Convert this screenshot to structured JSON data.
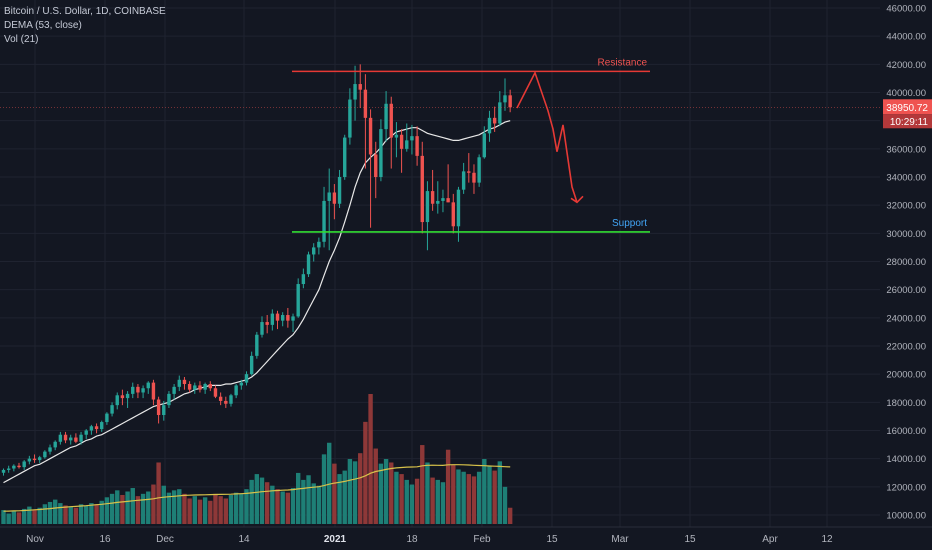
{
  "chart_data": {
    "type": "candlestick",
    "header": {
      "title": "Bitcoin / U.S. Dollar, 1D, COINBASE",
      "indicator_1": "DEMA (53, close)",
      "indicator_2": "Vol (21)"
    },
    "x_ticks": [
      "Nov",
      "16",
      "Dec",
      "14",
      "2021",
      "18",
      "Feb",
      "15",
      "Mar",
      "15",
      "Apr",
      "12"
    ],
    "y_ticks": [
      "46000.00",
      "44000.00",
      "42000.00",
      "40000.00",
      "38000.00",
      "36000.00",
      "34000.00",
      "32000.00",
      "30000.00",
      "28000.00",
      "26000.00",
      "24000.00",
      "22000.00",
      "20000.00",
      "18000.00",
      "16000.00",
      "14000.00",
      "12000.00",
      "10000.00"
    ],
    "y_range": [
      10000,
      46000
    ],
    "last_price": "38950.72",
    "countdown": "10:29:11",
    "annotations": {
      "resistance": {
        "label": "Resistance",
        "price": 41500
      },
      "support": {
        "label": "Support",
        "price": 30100
      },
      "projection_path_prices": [
        38900,
        41400,
        38700,
        37400,
        35800,
        37700,
        33300,
        32200
      ]
    },
    "colors": {
      "background": "#131722",
      "grid": "#1f2330",
      "up": "#26a69a",
      "down": "#ef5350",
      "up_volume": "#1e7f76",
      "down_volume": "#8e3838",
      "dema_line": "#e8e8e8",
      "volume_ma": "#d8c24a",
      "resistance_line": "#e53935",
      "support_line": "#33dd33",
      "resistance_text": "#ef5350",
      "support_text": "#42a5f5",
      "axis_text": "#b2b5be"
    },
    "candles": [
      {
        "o": 13000,
        "h": 13300,
        "l": 12800,
        "c": 13200
      },
      {
        "o": 13200,
        "h": 13500,
        "l": 13000,
        "c": 13300
      },
      {
        "o": 13300,
        "h": 13600,
        "l": 13100,
        "c": 13500
      },
      {
        "o": 13500,
        "h": 13700,
        "l": 13300,
        "c": 13400
      },
      {
        "o": 13400,
        "h": 13900,
        "l": 13200,
        "c": 13800
      },
      {
        "o": 13800,
        "h": 14200,
        "l": 13600,
        "c": 14000
      },
      {
        "o": 14000,
        "h": 14300,
        "l": 13700,
        "c": 13900
      },
      {
        "o": 13900,
        "h": 14200,
        "l": 13700,
        "c": 14100
      },
      {
        "o": 14100,
        "h": 14600,
        "l": 14000,
        "c": 14500
      },
      {
        "o": 14500,
        "h": 15000,
        "l": 14300,
        "c": 14800
      },
      {
        "o": 14800,
        "h": 15300,
        "l": 14600,
        "c": 15200
      },
      {
        "o": 15200,
        "h": 15900,
        "l": 15000,
        "c": 15700
      },
      {
        "o": 15700,
        "h": 15900,
        "l": 15100,
        "c": 15300
      },
      {
        "o": 15300,
        "h": 15700,
        "l": 15000,
        "c": 15500
      },
      {
        "o": 15500,
        "h": 15800,
        "l": 15100,
        "c": 15200
      },
      {
        "o": 15200,
        "h": 15900,
        "l": 15000,
        "c": 15700
      },
      {
        "o": 15700,
        "h": 16100,
        "l": 15400,
        "c": 16000
      },
      {
        "o": 16000,
        "h": 16400,
        "l": 15700,
        "c": 16300
      },
      {
        "o": 16300,
        "h": 16500,
        "l": 15800,
        "c": 16100
      },
      {
        "o": 16100,
        "h": 16700,
        "l": 15900,
        "c": 16600
      },
      {
        "o": 16600,
        "h": 17300,
        "l": 16400,
        "c": 17200
      },
      {
        "o": 17200,
        "h": 18000,
        "l": 17000,
        "c": 17800
      },
      {
        "o": 17800,
        "h": 18700,
        "l": 17500,
        "c": 18500
      },
      {
        "o": 18500,
        "h": 18900,
        "l": 17800,
        "c": 18300
      },
      {
        "o": 18300,
        "h": 18800,
        "l": 17600,
        "c": 18600
      },
      {
        "o": 18600,
        "h": 19400,
        "l": 18300,
        "c": 19100
      },
      {
        "o": 19100,
        "h": 19300,
        "l": 18300,
        "c": 18700
      },
      {
        "o": 18700,
        "h": 19200,
        "l": 18300,
        "c": 19000
      },
      {
        "o": 19000,
        "h": 19500,
        "l": 18600,
        "c": 19400
      },
      {
        "o": 19400,
        "h": 19600,
        "l": 17800,
        "c": 18200
      },
      {
        "o": 18200,
        "h": 18400,
        "l": 16500,
        "c": 17100
      },
      {
        "o": 17100,
        "h": 18100,
        "l": 16700,
        "c": 17800
      },
      {
        "o": 17800,
        "h": 18800,
        "l": 17600,
        "c": 18600
      },
      {
        "o": 18600,
        "h": 19300,
        "l": 18200,
        "c": 19100
      },
      {
        "o": 19100,
        "h": 19900,
        "l": 18800,
        "c": 19600
      },
      {
        "o": 19600,
        "h": 19800,
        "l": 18900,
        "c": 19300
      },
      {
        "o": 19300,
        "h": 19500,
        "l": 18700,
        "c": 18900
      },
      {
        "o": 18900,
        "h": 19400,
        "l": 18600,
        "c": 19200
      },
      {
        "o": 19200,
        "h": 19500,
        "l": 18700,
        "c": 18900
      },
      {
        "o": 18900,
        "h": 19400,
        "l": 18600,
        "c": 19300
      },
      {
        "o": 19300,
        "h": 19500,
        "l": 18800,
        "c": 19000
      },
      {
        "o": 19000,
        "h": 19200,
        "l": 18300,
        "c": 18400
      },
      {
        "o": 18400,
        "h": 18700,
        "l": 17800,
        "c": 18100
      },
      {
        "o": 18100,
        "h": 18400,
        "l": 17600,
        "c": 17900
      },
      {
        "o": 17900,
        "h": 18600,
        "l": 17700,
        "c": 18500
      },
      {
        "o": 18500,
        "h": 19300,
        "l": 18300,
        "c": 19200
      },
      {
        "o": 19200,
        "h": 19600,
        "l": 18900,
        "c": 19400
      },
      {
        "o": 19400,
        "h": 20200,
        "l": 19200,
        "c": 20000
      },
      {
        "o": 20000,
        "h": 21600,
        "l": 19900,
        "c": 21300
      },
      {
        "o": 21300,
        "h": 23000,
        "l": 21100,
        "c": 22800
      },
      {
        "o": 22800,
        "h": 24100,
        "l": 22600,
        "c": 23700
      },
      {
        "o": 23700,
        "h": 24200,
        "l": 22900,
        "c": 23500
      },
      {
        "o": 23500,
        "h": 24600,
        "l": 23100,
        "c": 24300
      },
      {
        "o": 24300,
        "h": 24500,
        "l": 23200,
        "c": 23800
      },
      {
        "o": 23800,
        "h": 24400,
        "l": 23400,
        "c": 24200
      },
      {
        "o": 24200,
        "h": 24700,
        "l": 23300,
        "c": 23800
      },
      {
        "o": 23800,
        "h": 24300,
        "l": 23000,
        "c": 24100
      },
      {
        "o": 24100,
        "h": 26800,
        "l": 24000,
        "c": 26400
      },
      {
        "o": 26400,
        "h": 27500,
        "l": 26100,
        "c": 27100
      },
      {
        "o": 27100,
        "h": 28700,
        "l": 26900,
        "c": 28500
      },
      {
        "o": 28500,
        "h": 29300,
        "l": 28000,
        "c": 29000
      },
      {
        "o": 29000,
        "h": 29700,
        "l": 28500,
        "c": 29400
      },
      {
        "o": 29400,
        "h": 33300,
        "l": 29000,
        "c": 32300
      },
      {
        "o": 32300,
        "h": 34600,
        "l": 28800,
        "c": 32900
      },
      {
        "o": 32900,
        "h": 33500,
        "l": 31000,
        "c": 32100
      },
      {
        "o": 32100,
        "h": 34500,
        "l": 31800,
        "c": 34000
      },
      {
        "o": 34000,
        "h": 37000,
        "l": 33800,
        "c": 36800
      },
      {
        "o": 36800,
        "h": 40300,
        "l": 36300,
        "c": 39500
      },
      {
        "o": 39500,
        "h": 41900,
        "l": 38000,
        "c": 40600
      },
      {
        "o": 40600,
        "h": 42000,
        "l": 38900,
        "c": 40200
      },
      {
        "o": 40200,
        "h": 41300,
        "l": 34600,
        "c": 38200
      },
      {
        "o": 38200,
        "h": 38800,
        "l": 30400,
        "c": 35600
      },
      {
        "o": 35600,
        "h": 36500,
        "l": 32500,
        "c": 34000
      },
      {
        "o": 34000,
        "h": 38100,
        "l": 33700,
        "c": 37400
      },
      {
        "o": 37400,
        "h": 40100,
        "l": 36500,
        "c": 39200
      },
      {
        "o": 39200,
        "h": 39700,
        "l": 34600,
        "c": 36800
      },
      {
        "o": 36800,
        "h": 37900,
        "l": 35400,
        "c": 37000
      },
      {
        "o": 37000,
        "h": 37400,
        "l": 34300,
        "c": 36000
      },
      {
        "o": 36000,
        "h": 37800,
        "l": 35800,
        "c": 36600
      },
      {
        "o": 36600,
        "h": 37700,
        "l": 35600,
        "c": 36900
      },
      {
        "o": 36900,
        "h": 37600,
        "l": 34800,
        "c": 35500
      },
      {
        "o": 35500,
        "h": 36500,
        "l": 30000,
        "c": 30800
      },
      {
        "o": 30800,
        "h": 33700,
        "l": 28800,
        "c": 33000
      },
      {
        "o": 33000,
        "h": 34500,
        "l": 31600,
        "c": 32100
      },
      {
        "o": 32100,
        "h": 33700,
        "l": 31400,
        "c": 32300
      },
      {
        "o": 32300,
        "h": 33100,
        "l": 31500,
        "c": 32500
      },
      {
        "o": 32500,
        "h": 34900,
        "l": 32200,
        "c": 32200
      },
      {
        "o": 32200,
        "h": 32800,
        "l": 30000,
        "c": 30500
      },
      {
        "o": 30500,
        "h": 33300,
        "l": 29400,
        "c": 33100
      },
      {
        "o": 33100,
        "h": 35000,
        "l": 32800,
        "c": 34400
      },
      {
        "o": 34400,
        "h": 35700,
        "l": 33600,
        "c": 34300
      },
      {
        "o": 34300,
        "h": 34900,
        "l": 32800,
        "c": 33600
      },
      {
        "o": 33600,
        "h": 35600,
        "l": 33300,
        "c": 35400
      },
      {
        "o": 35400,
        "h": 37600,
        "l": 35300,
        "c": 37100
      },
      {
        "o": 37100,
        "h": 38700,
        "l": 36500,
        "c": 38200
      },
      {
        "o": 38200,
        "h": 39000,
        "l": 37200,
        "c": 37800
      },
      {
        "o": 37800,
        "h": 40100,
        "l": 37600,
        "c": 39300
      },
      {
        "o": 39300,
        "h": 41000,
        "l": 38700,
        "c": 39800
      },
      {
        "o": 39800,
        "h": 40200,
        "l": 38600,
        "c": 38950
      }
    ],
    "volume_values": [
      1200,
      900,
      1100,
      1000,
      1300,
      1500,
      1200,
      1400,
      1700,
      1900,
      2100,
      1800,
      1600,
      1500,
      1400,
      1700,
      1600,
      1800,
      1700,
      2000,
      2300,
      2600,
      2900,
      2500,
      2800,
      3100,
      2400,
      2600,
      2800,
      3400,
      5300,
      3300,
      2700,
      2900,
      3000,
      2600,
      2200,
      2400,
      2100,
      2300,
      2000,
      2600,
      2400,
      2200,
      2500,
      2700,
      2600,
      3000,
      3800,
      4300,
      4000,
      3600,
      3300,
      3000,
      2800,
      2700,
      3100,
      4400,
      3800,
      4200,
      3500,
      3300,
      6000,
      7000,
      5200,
      4300,
      4600,
      5600,
      5400,
      6100,
      8800,
      11200,
      6500,
      5200,
      5600,
      5300,
      4500,
      4300,
      3800,
      3400,
      3900,
      6800,
      5300,
      4000,
      3800,
      3600,
      6400,
      5100,
      4700,
      4500,
      4300,
      4100,
      4500,
      5600,
      5000,
      4600,
      5400,
      3200,
      1400
    ],
    "volume_ma_values": [
      1100,
      1110,
      1130,
      1140,
      1160,
      1190,
      1220,
      1250,
      1290,
      1330,
      1380,
      1420,
      1460,
      1490,
      1520,
      1550,
      1580,
      1620,
      1660,
      1700,
      1750,
      1800,
      1860,
      1900,
      1950,
      2000,
      2040,
      2080,
      2120,
      2170,
      2260,
      2310,
      2350,
      2390,
      2430,
      2460,
      2480,
      2500,
      2510,
      2520,
      2530,
      2540,
      2550,
      2560,
      2570,
      2590,
      2610,
      2640,
      2680,
      2730,
      2780,
      2820,
      2860,
      2890,
      2910,
      2930,
      2960,
      3020,
      3070,
      3130,
      3170,
      3210,
      3310,
      3430,
      3520,
      3590,
      3670,
      3770,
      3870,
      3980,
      4150,
      4380,
      4520,
      4610,
      4700,
      4780,
      4830,
      4870,
      4900,
      4910,
      4930,
      5010,
      5060,
      5070,
      5060,
      5050,
      5100,
      5110,
      5110,
      5100,
      5080,
      5060,
      5040,
      5020,
      5000,
      4980,
      4960,
      4940,
      4920
    ],
    "dema_values": [
      12300,
      12500,
      12700,
      12900,
      13100,
      13300,
      13500,
      13600,
      13800,
      14000,
      14200,
      14400,
      14600,
      14800,
      14900,
      15100,
      15300,
      15400,
      15600,
      15700,
      15900,
      16100,
      16300,
      16500,
      16700,
      16900,
      17100,
      17300,
      17500,
      17700,
      17800,
      17900,
      18000,
      18200,
      18400,
      18600,
      18700,
      18900,
      19000,
      19100,
      19200,
      19200,
      19200,
      19300,
      19300,
      19400,
      19500,
      19600,
      19800,
      20100,
      20500,
      20900,
      21300,
      21700,
      22100,
      22500,
      22800,
      23300,
      23900,
      24600,
      25300,
      26000,
      27000,
      28000,
      28800,
      29700,
      30800,
      32000,
      33300,
      34300,
      35000,
      35400,
      35700,
      36100,
      36600,
      36900,
      37200,
      37300,
      37400,
      37500,
      37500,
      37300,
      37100,
      37000,
      36900,
      36800,
      36700,
      36600,
      36600,
      36700,
      36800,
      36900,
      37000,
      37200,
      37400,
      37500,
      37700,
      37900,
      38000
    ]
  }
}
